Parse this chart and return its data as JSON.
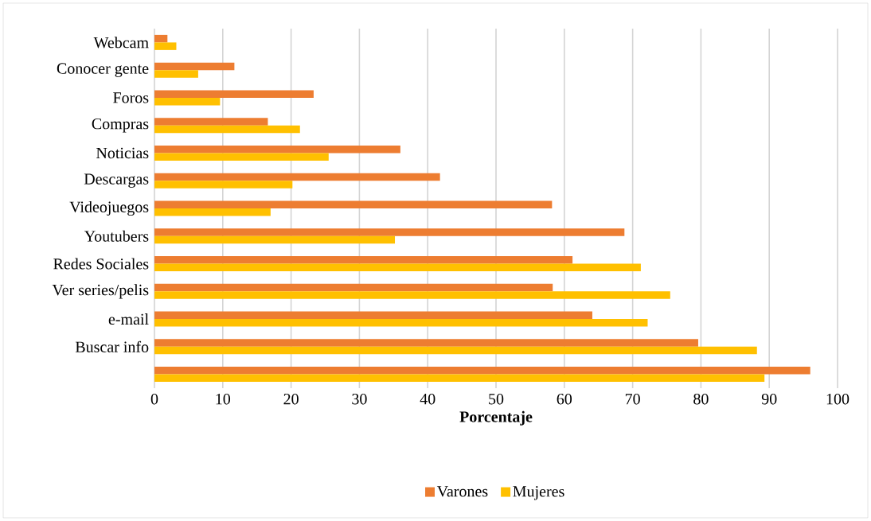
{
  "chart_data": {
    "type": "bar",
    "orientation": "horizontal",
    "categories": [
      "Webcam",
      "Conocer gente",
      "Foros",
      "Compras",
      "Noticias",
      "Descargas",
      "Videojuegos",
      "Youtubers",
      "Redes Sociales",
      "Ver series/pelis",
      "e-mail",
      "Buscar info",
      null
    ],
    "series": [
      {
        "name": "Varones",
        "color": "#ed7d31",
        "values": [
          1.9,
          11.7,
          23.3,
          16.6,
          36.0,
          41.8,
          58.2,
          68.8,
          61.2,
          58.3,
          64.1,
          79.6,
          96.0
        ]
      },
      {
        "name": "Mujeres",
        "color": "#ffc000",
        "values": [
          3.2,
          6.4,
          9.6,
          21.3,
          25.5,
          20.2,
          17.0,
          35.2,
          71.2,
          75.5,
          72.2,
          88.2,
          89.3
        ]
      }
    ],
    "xlim": [
      0,
      100
    ],
    "xticks": [
      0,
      10,
      20,
      30,
      40,
      50,
      60,
      70,
      80,
      90,
      100
    ],
    "xlabel": "Porcentaje",
    "grid": "x",
    "legend": "bottom"
  }
}
